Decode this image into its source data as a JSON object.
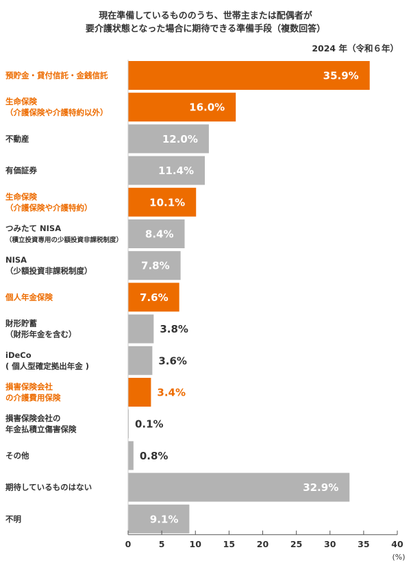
{
  "chart_data": {
    "type": "bar",
    "orientation": "horizontal",
    "title": [
      "現在準備しているもののうち、世帯主または配偶者が",
      "要介護状態となった場合に期待できる準備手段（複数回答）"
    ],
    "note": "2024 年（令和６年）",
    "xlim": [
      0,
      40
    ],
    "xticks": [
      "0",
      "5",
      "10",
      "15",
      "20",
      "25",
      "30",
      "35",
      "40"
    ],
    "x_unit": "(%)",
    "grid": false,
    "colors": {
      "highlight": "#ed6c00",
      "normal": "#b3b3b3",
      "highlight_text": "#ed6c00",
      "normal_text": "#333333"
    },
    "categories": [
      {
        "lines": [
          "預貯金・貸付信託・金銭信託"
        ],
        "value": 35.9,
        "label": "35.9%",
        "highlight": true
      },
      {
        "lines": [
          "生命保険",
          "（介護保険や介護特約以外）"
        ],
        "value": 16.0,
        "label": "16.0%",
        "highlight": true
      },
      {
        "lines": [
          "不動産"
        ],
        "value": 12.0,
        "label": "12.0%",
        "highlight": false
      },
      {
        "lines": [
          "有価証券"
        ],
        "value": 11.4,
        "label": "11.4%",
        "highlight": false
      },
      {
        "lines": [
          "生命保険",
          "（介護保険や介護特約）"
        ],
        "value": 10.1,
        "label": "10.1%",
        "highlight": true
      },
      {
        "lines": [
          "つみたて NISA",
          "（積立投資専用の少額投資非課税制度）"
        ],
        "value": 8.4,
        "label": "8.4%",
        "highlight": false,
        "small_second": true
      },
      {
        "lines": [
          "NISA",
          "（少額投資非課税制度）"
        ],
        "value": 7.8,
        "label": "7.8%",
        "highlight": false
      },
      {
        "lines": [
          "個人年金保険"
        ],
        "value": 7.6,
        "label": "7.6%",
        "highlight": true
      },
      {
        "lines": [
          "財形貯蓄",
          "（財形年金を含む）"
        ],
        "value": 3.8,
        "label": "3.8%",
        "highlight": false
      },
      {
        "lines": [
          "iDeCo",
          "( 個人型確定拠出年金 )"
        ],
        "value": 3.6,
        "label": "3.6%",
        "highlight": false
      },
      {
        "lines": [
          "損害保険会社",
          "の介護費用保険"
        ],
        "value": 3.4,
        "label": "3.4%",
        "highlight": true
      },
      {
        "lines": [
          "損害保険会社の",
          "年金払積立傷害保険"
        ],
        "value": 0.1,
        "label": "0.1%",
        "highlight": false
      },
      {
        "lines": [
          "その他"
        ],
        "value": 0.8,
        "label": "0.8%",
        "highlight": false
      },
      {
        "lines": [
          "期待しているものはない"
        ],
        "value": 32.9,
        "label": "32.9%",
        "highlight": false
      },
      {
        "lines": [
          "不明"
        ],
        "value": 9.1,
        "label": "9.1%",
        "highlight": false
      }
    ]
  }
}
